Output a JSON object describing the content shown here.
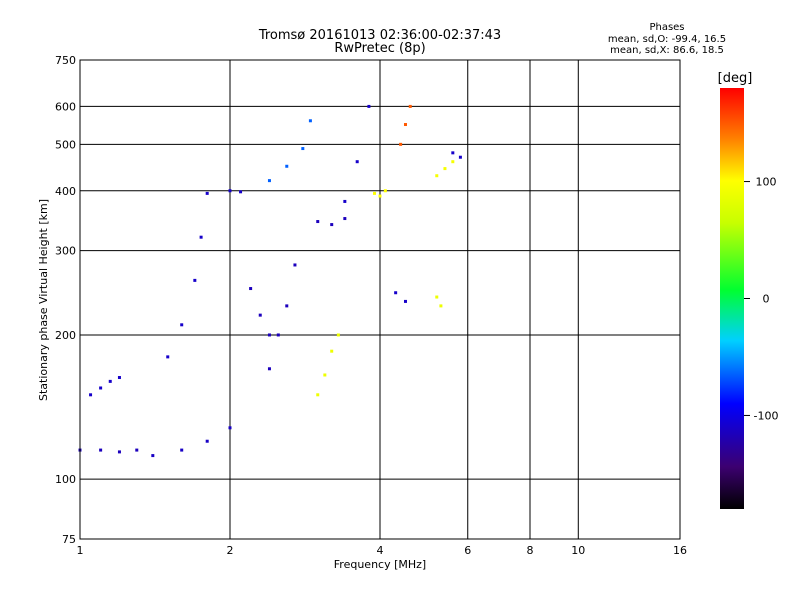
{
  "chart_data": {
    "type": "scatter",
    "title": "Tromsø 20161013 02:36:00-02:37:43",
    "subtitle": "RwPretec (8p)",
    "xlabel": "Frequency [MHz]",
    "ylabel": "Stationary phase Virtual Height [km]",
    "x_scale": "log",
    "y_scale": "log",
    "xlim": [
      1,
      16
    ],
    "ylim": [
      75,
      750
    ],
    "x_ticks": [
      1,
      2,
      4,
      6,
      8,
      10,
      16
    ],
    "x_tick_labels": [
      "1",
      "2",
      "4",
      "6",
      "8",
      "10",
      "16"
    ],
    "y_ticks": [
      75,
      100,
      200,
      300,
      400,
      500,
      600,
      750
    ],
    "y_tick_labels": [
      "75",
      "100",
      "200",
      "300",
      "400",
      "500",
      "600",
      "750"
    ],
    "x_grid": [
      2,
      4,
      6,
      8,
      10
    ],
    "y_grid": [
      100,
      200,
      300,
      400,
      500,
      600
    ],
    "grid": true,
    "stats": {
      "heading": "Phases",
      "o_line": "mean, sd,O: -99.4, 16.5",
      "x_line": "mean, sd,X:  86.6, 18.5"
    },
    "colorbar": {
      "label": "[deg]",
      "range": [
        -180,
        180
      ],
      "ticks": [
        100,
        0,
        -100
      ],
      "tick_labels": [
        "100",
        "0",
        "-100"
      ],
      "colormap": "rainbow"
    },
    "series": [
      {
        "x": [
          1.05,
          1.1,
          1.15,
          1.2
        ],
        "y": [
          150,
          155,
          160,
          163
        ],
        "phase": -110
      },
      {
        "x": [
          1.0,
          1.1,
          1.2,
          1.3
        ],
        "y": [
          115,
          115,
          114,
          115
        ],
        "phase": -115
      },
      {
        "x": [
          1.4,
          1.6,
          1.8,
          2.0
        ],
        "y": [
          112,
          115,
          120,
          128
        ],
        "phase": -112
      },
      {
        "x": [
          1.5,
          1.6,
          1.7,
          1.75
        ],
        "y": [
          180,
          210,
          260,
          320
        ],
        "phase": -110
      },
      {
        "x": [
          1.8,
          2.0,
          2.1
        ],
        "y": [
          395,
          400,
          398
        ],
        "phase": -110
      },
      {
        "x": [
          2.2,
          2.3,
          2.4
        ],
        "y": [
          250,
          220,
          200
        ],
        "phase": -115
      },
      {
        "x": [
          2.4,
          2.5,
          2.6,
          2.7
        ],
        "y": [
          170,
          200,
          230,
          280
        ],
        "phase": -115
      },
      {
        "x": [
          2.4,
          2.6,
          2.8,
          2.9
        ],
        "y": [
          420,
          450,
          490,
          560
        ],
        "phase": -65
      },
      {
        "x": [
          3.0,
          3.1,
          3.2,
          3.3
        ],
        "y": [
          150,
          165,
          185,
          200
        ],
        "phase": 90
      },
      {
        "x": [
          3.0,
          3.2,
          3.4
        ],
        "y": [
          345,
          340,
          350
        ],
        "phase": -115
      },
      {
        "x": [
          3.4,
          3.6,
          3.8
        ],
        "y": [
          380,
          460,
          600
        ],
        "phase": -110
      },
      {
        "x": [
          3.9,
          4.0,
          4.1
        ],
        "y": [
          395,
          390,
          400
        ],
        "phase": 100
      },
      {
        "x": [
          4.4,
          4.5,
          4.6
        ],
        "y": [
          500,
          550,
          600
        ],
        "phase": 150
      },
      {
        "x": [
          4.3,
          4.5
        ],
        "y": [
          245,
          235
        ],
        "phase": -110
      },
      {
        "x": [
          5.2,
          5.3
        ],
        "y": [
          240,
          230
        ],
        "phase": 90
      },
      {
        "x": [
          5.2,
          5.4,
          5.6
        ],
        "y": [
          430,
          445,
          460
        ],
        "phase": 95
      },
      {
        "x": [
          5.6,
          5.8
        ],
        "y": [
          480,
          470
        ],
        "phase": -110
      }
    ]
  }
}
